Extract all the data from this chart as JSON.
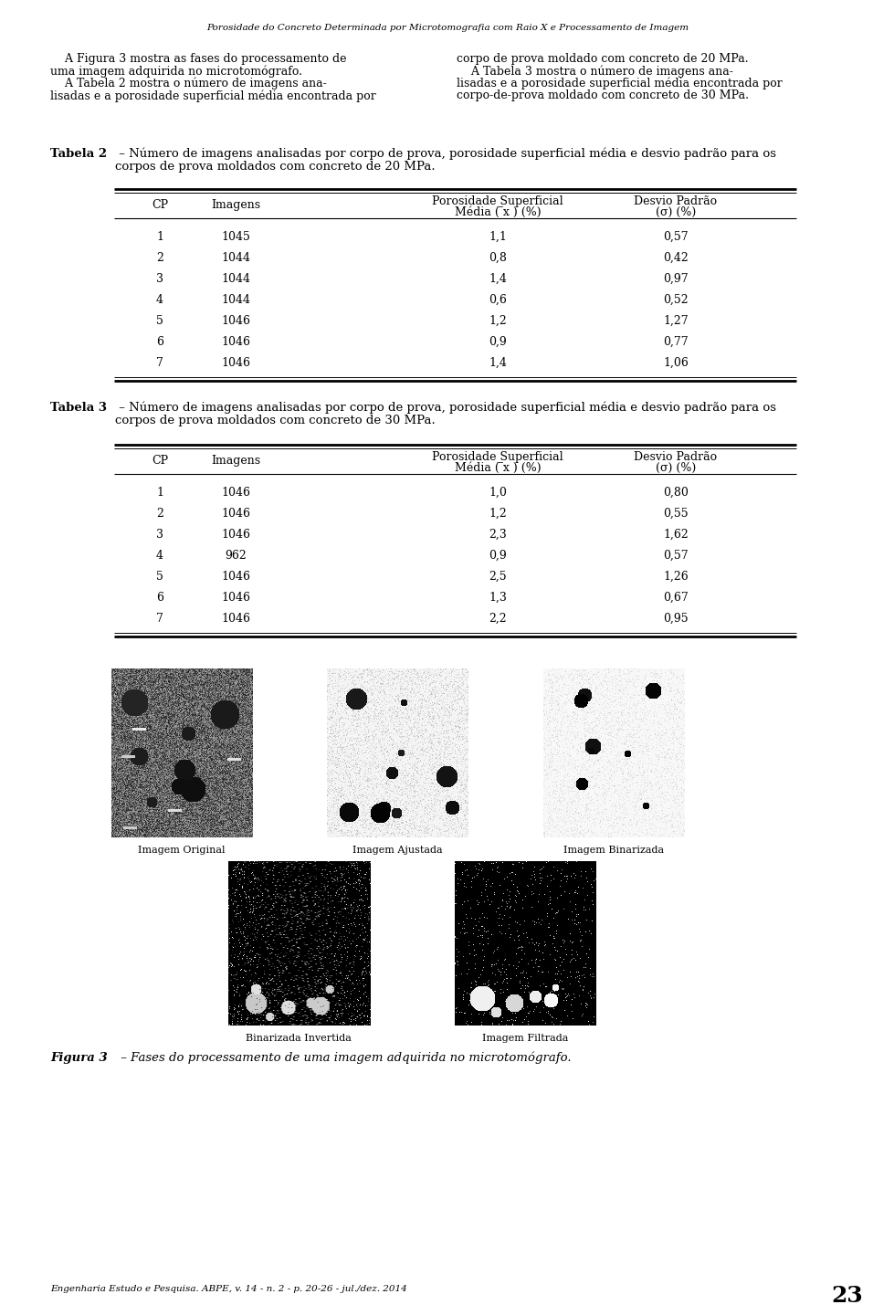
{
  "page_title": "Porosidade do Concreto Determinada por Microtomografia com Raio X e Processamento de Imagem",
  "table2_caption_bold": "Tabela 2",
  "table2_caption_line1": " – Número de imagens analisadas por corpo de prova, porosidade superficial média e desvio padrão para os",
  "table2_caption_line2": "corpos de prova moldados com concreto de 20 MPa.",
  "table2_data": [
    [
      "1",
      "1045",
      "1,1",
      "0,57"
    ],
    [
      "2",
      "1044",
      "0,8",
      "0,42"
    ],
    [
      "3",
      "1044",
      "1,4",
      "0,97"
    ],
    [
      "4",
      "1044",
      "0,6",
      "0,52"
    ],
    [
      "5",
      "1046",
      "1,2",
      "1,27"
    ],
    [
      "6",
      "1046",
      "0,9",
      "0,77"
    ],
    [
      "7",
      "1046",
      "1,4",
      "1,06"
    ]
  ],
  "table3_caption_bold": "Tabela 3",
  "table3_caption_line1": " – Número de imagens analisadas por corpo de prova, porosidade superficial média e desvio padrão para os",
  "table3_caption_line2": "corpos de prova moldados com concreto de 30 MPa.",
  "table3_data": [
    [
      "1",
      "1046",
      "1,0",
      "0,80"
    ],
    [
      "2",
      "1046",
      "1,2",
      "0,55"
    ],
    [
      "3",
      "1046",
      "2,3",
      "1,62"
    ],
    [
      "4",
      "962",
      "0,9",
      "0,57"
    ],
    [
      "5",
      "1046",
      "2,5",
      "1,26"
    ],
    [
      "6",
      "1046",
      "1,3",
      "0,67"
    ],
    [
      "7",
      "1046",
      "2,2",
      "0,95"
    ]
  ],
  "figure_caption_bold": "Figura 3",
  "figure_caption_rest": " – Fases do processamento de uma imagem adquirida no microtomógrafo.",
  "image_labels": [
    "Imagem Original",
    "Imagem Ajustada",
    "Imagem Binarizada",
    "Binarizada Invertida",
    "Imagem Filtrada"
  ],
  "col1_lines": [
    "    A Figura 3 mostra as fases do processamento de",
    "uma imagem adquirida no microtomógrafo.",
    "    A Tabela 2 mostra o número de imagens ana-",
    "lisadas e a porosidade superficial média encontrada por"
  ],
  "col2_lines": [
    "corpo de prova moldado com concreto de 20 MPa.",
    "    A Tabela 3 mostra o número de imagens ana-",
    "lisadas e a porosidade superficial média encontrada por",
    "corpo-de-prova moldado com concreto de 30 MPa."
  ],
  "footer_text": "Engenharia Estudo e Pesquisa. ABPE, v. 14 - n. 2 - p. 20-26 - jul./dez. 2014",
  "page_number": "23"
}
